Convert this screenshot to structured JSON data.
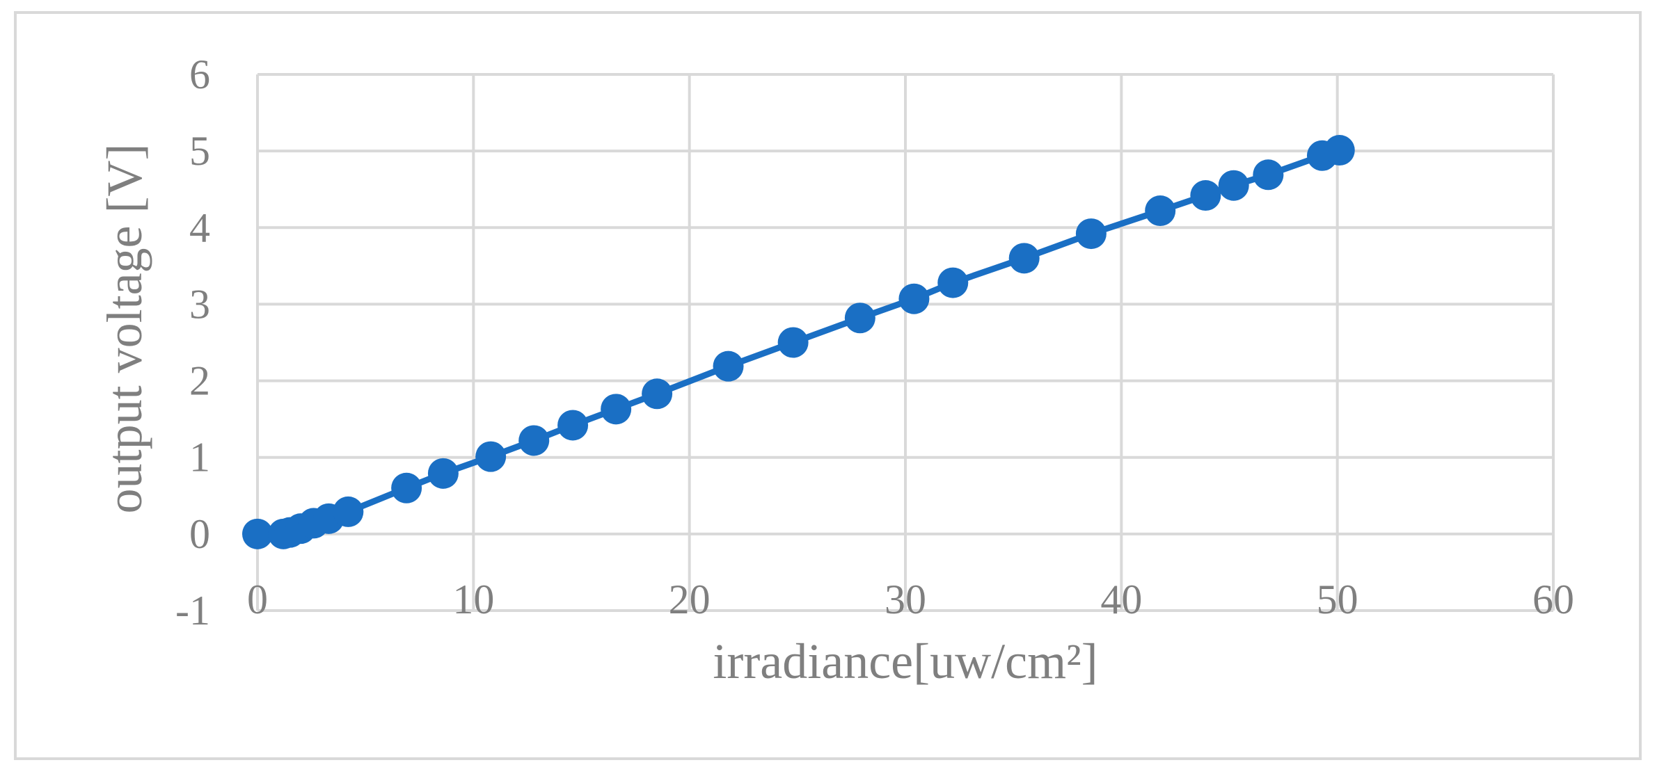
{
  "chart_data": {
    "type": "scatter",
    "title": "",
    "xlabel": "irradiance[uw/cm²]",
    "ylabel": "output voltage [V]",
    "xlim": [
      0,
      60
    ],
    "ylim": [
      -1,
      6
    ],
    "x_ticks": [
      "0",
      "10",
      "20",
      "30",
      "40",
      "50",
      "60"
    ],
    "y_ticks": [
      "-1",
      "0",
      "1",
      "2",
      "3",
      "4",
      "5",
      "6"
    ],
    "grid": true,
    "legend": "none",
    "marker": "circle",
    "line": "straight lines with markers",
    "series_color": "#1a6fc4",
    "grid_color": "#d9d9d9",
    "text_color": "#7f7f7f",
    "series": [
      {
        "x": [
          0,
          1.2,
          1.5,
          2.0,
          2.6,
          3.3,
          4.2,
          6.9,
          8.6,
          10.8,
          12.8,
          14.6,
          16.6,
          18.5,
          21.8,
          24.8,
          27.9,
          30.4,
          32.2,
          35.5,
          38.6,
          41.8,
          43.9,
          45.2,
          46.8,
          49.3,
          50.1
        ],
        "y": [
          0,
          0,
          0.02,
          0.07,
          0.14,
          0.2,
          0.29,
          0.6,
          0.79,
          1.01,
          1.22,
          1.42,
          1.63,
          1.83,
          2.19,
          2.5,
          2.82,
          3.07,
          3.28,
          3.6,
          3.92,
          4.22,
          4.42,
          4.55,
          4.69,
          4.94,
          5.01
        ]
      }
    ]
  }
}
